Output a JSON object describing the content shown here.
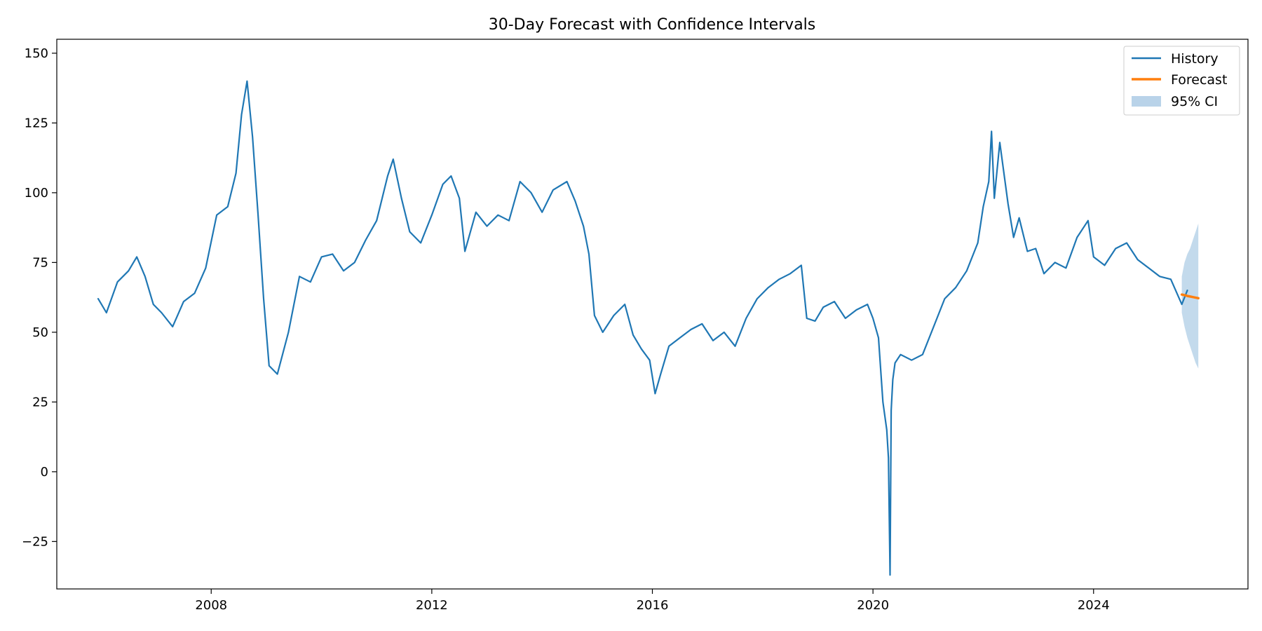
{
  "chart_data": {
    "type": "line",
    "title": "30-Day Forecast with Confidence Intervals",
    "xlabel": "",
    "ylabel": "",
    "xlim": [
      2005.2,
      2026.8
    ],
    "ylim": [
      -42,
      155
    ],
    "x_ticks": [
      2008,
      2012,
      2016,
      2020,
      2024
    ],
    "x_tick_labels": [
      "2008",
      "2012",
      "2016",
      "2020",
      "2024"
    ],
    "y_ticks": [
      150,
      125,
      100,
      75,
      50,
      25,
      0,
      -25
    ],
    "y_tick_labels": [
      "150",
      "125",
      "100",
      "75",
      "50",
      "25",
      "0",
      "−25"
    ],
    "grid": false,
    "legend_position": "top-right",
    "colors": {
      "history": "#1f77b4",
      "forecast": "#ff7f0e",
      "ci": "#b9d3e9"
    },
    "series": [
      {
        "name": "History",
        "style": "line",
        "x": [
          2005.95,
          2006.1,
          2006.3,
          2006.5,
          2006.65,
          2006.8,
          2006.95,
          2007.1,
          2007.3,
          2007.5,
          2007.7,
          2007.9,
          2008.1,
          2008.3,
          2008.45,
          2008.55,
          2008.65,
          2008.75,
          2008.85,
          2008.95,
          2009.05,
          2009.2,
          2009.4,
          2009.6,
          2009.8,
          2010.0,
          2010.2,
          2010.4,
          2010.6,
          2010.8,
          2011.0,
          2011.2,
          2011.3,
          2011.45,
          2011.6,
          2011.8,
          2012.0,
          2012.2,
          2012.35,
          2012.5,
          2012.6,
          2012.8,
          2013.0,
          2013.2,
          2013.4,
          2013.6,
          2013.8,
          2014.0,
          2014.2,
          2014.45,
          2014.6,
          2014.75,
          2014.85,
          2014.95,
          2015.1,
          2015.3,
          2015.5,
          2015.65,
          2015.8,
          2015.95,
          2016.05,
          2016.15,
          2016.3,
          2016.5,
          2016.7,
          2016.9,
          2017.1,
          2017.3,
          2017.5,
          2017.7,
          2017.9,
          2018.1,
          2018.3,
          2018.5,
          2018.7,
          2018.8,
          2018.95,
          2019.1,
          2019.3,
          2019.5,
          2019.7,
          2019.9,
          2020.0,
          2020.1,
          2020.18,
          2020.25,
          2020.28,
          2020.31,
          2020.33,
          2020.36,
          2020.4,
          2020.5,
          2020.7,
          2020.9,
          2021.1,
          2021.3,
          2021.5,
          2021.7,
          2021.9,
          2022.0,
          2022.1,
          2022.15,
          2022.2,
          2022.3,
          2022.45,
          2022.55,
          2022.65,
          2022.8,
          2022.95,
          2023.1,
          2023.3,
          2023.5,
          2023.7,
          2023.9,
          2024.0,
          2024.2,
          2024.4,
          2024.6,
          2024.8,
          2025.0,
          2025.2,
          2025.4,
          2025.6,
          2025.7
        ],
        "y": [
          62,
          57,
          68,
          72,
          77,
          70,
          60,
          57,
          52,
          61,
          64,
          73,
          92,
          95,
          107,
          128,
          140,
          120,
          92,
          62,
          38,
          35,
          50,
          70,
          68,
          77,
          78,
          72,
          75,
          83,
          90,
          106,
          112,
          98,
          86,
          82,
          92,
          103,
          106,
          98,
          79,
          93,
          88,
          92,
          90,
          104,
          100,
          93,
          101,
          104,
          97,
          88,
          78,
          56,
          50,
          56,
          60,
          49,
          44,
          40,
          28,
          35,
          45,
          48,
          51,
          53,
          47,
          50,
          45,
          55,
          62,
          66,
          69,
          71,
          74,
          55,
          54,
          59,
          61,
          55,
          58,
          60,
          55,
          48,
          25,
          15,
          5,
          -37,
          22,
          33,
          39,
          42,
          40,
          42,
          52,
          62,
          66,
          72,
          82,
          95,
          104,
          122,
          98,
          118,
          96,
          84,
          91,
          79,
          80,
          71,
          75,
          73,
          84,
          90,
          77,
          74,
          80,
          82,
          76,
          73,
          70,
          69,
          60,
          65
        ],
        "line_width": 2.2
      },
      {
        "name": "Forecast",
        "style": "line",
        "x": [
          2025.6,
          2025.7,
          2025.8,
          2025.9
        ],
        "y": [
          63.5,
          63.0,
          62.6,
          62.2
        ],
        "line_width": 3.5
      },
      {
        "name": "95% CI",
        "style": "band",
        "x": [
          2025.6,
          2025.65,
          2025.7,
          2025.75,
          2025.8,
          2025.85,
          2025.9
        ],
        "upper": [
          70,
          75,
          78,
          80,
          83,
          86,
          89
        ],
        "lower": [
          57,
          52,
          48,
          45,
          42,
          39,
          37
        ]
      }
    ]
  }
}
